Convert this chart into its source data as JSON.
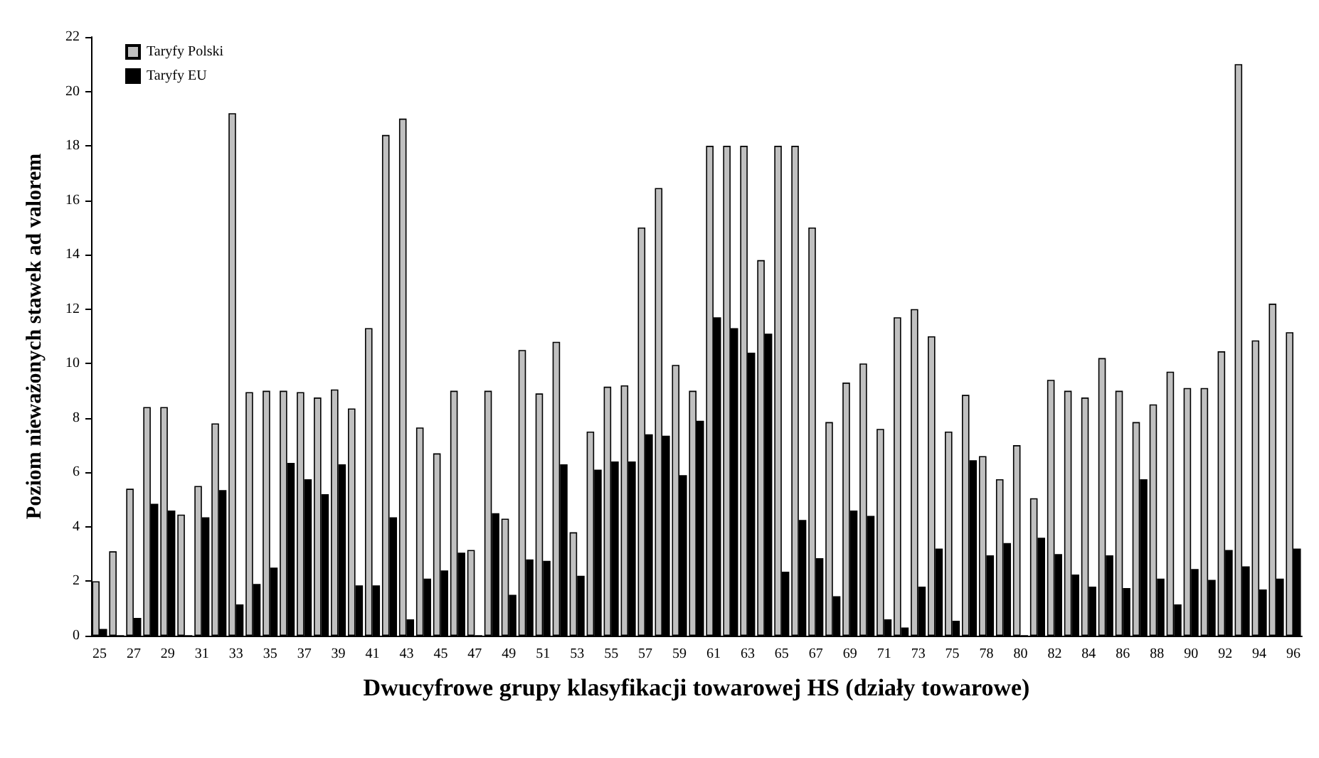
{
  "chart_data": {
    "type": "bar",
    "xlabel": "Dwucyfrowe grupy klasyfikacji towarowej HS (działy towarowe)",
    "ylabel": "Poziom nieważonych stawek ad valorem",
    "categories": [
      "25",
      null,
      "27",
      null,
      "29",
      null,
      "31",
      null,
      "33",
      null,
      "35",
      null,
      "37",
      null,
      "39",
      null,
      "41",
      null,
      "43",
      null,
      "45",
      null,
      "47",
      null,
      "49",
      null,
      "51",
      null,
      "53",
      null,
      "55",
      null,
      "57",
      null,
      "59",
      null,
      "61",
      null,
      "63",
      null,
      "65",
      null,
      "67",
      null,
      "69",
      null,
      "71",
      null,
      "73",
      null,
      "75",
      null,
      "78",
      null,
      "80",
      null,
      "82",
      null,
      "84",
      null,
      "86",
      null,
      "88",
      null,
      "90",
      null,
      "92",
      null,
      "94",
      null,
      "96"
    ],
    "series": [
      {
        "name": "Taryfy Polski",
        "color": "#c0c0c0",
        "values": [
          2.0,
          3.1,
          5.4,
          8.4,
          8.4,
          4.45,
          5.5,
          7.8,
          19.2,
          8.95,
          9.0,
          9.0,
          8.95,
          8.75,
          9.05,
          8.35,
          11.3,
          18.4,
          19.0,
          7.65,
          6.7,
          9.0,
          3.15,
          9.0,
          4.3,
          10.5,
          8.9,
          10.8,
          3.8,
          7.5,
          9.15,
          9.2,
          15.0,
          16.45,
          9.95,
          9.0,
          18.0,
          18.0,
          18.0,
          13.8,
          18.0,
          18.0,
          15.0,
          7.85,
          9.3,
          10.0,
          7.6,
          11.7,
          12.0,
          11.0,
          7.5,
          8.85,
          6.6,
          5.75,
          7.0,
          5.05,
          9.4,
          9.0,
          8.75,
          10.2,
          9.0,
          7.85,
          8.5,
          9.7,
          9.1,
          9.1,
          10.45,
          21.0,
          10.85,
          12.2,
          11.15
        ]
      },
      {
        "name": "Taryfy EU",
        "color": "#000000",
        "values": [
          0.25,
          0,
          0.65,
          4.85,
          4.6,
          0,
          4.35,
          5.35,
          1.15,
          1.9,
          2.5,
          6.35,
          5.75,
          5.2,
          6.3,
          1.85,
          1.85,
          4.35,
          0.6,
          2.1,
          2.4,
          3.05,
          0,
          4.5,
          1.5,
          2.8,
          2.75,
          6.3,
          2.2,
          6.1,
          6.4,
          6.4,
          7.4,
          7.35,
          5.9,
          7.9,
          11.7,
          11.3,
          10.4,
          11.1,
          2.35,
          4.25,
          2.85,
          1.45,
          4.6,
          4.4,
          0.6,
          0.3,
          1.8,
          3.2,
          0.55,
          6.45,
          2.95,
          3.4,
          0,
          3.6,
          3.0,
          2.25,
          1.8,
          2.95,
          1.75,
          5.75,
          2.1,
          1.15,
          2.45,
          2.05,
          3.15,
          2.55,
          1.7,
          2.1,
          3.2
        ]
      }
    ],
    "ylim": [
      0,
      22
    ],
    "yticks": [
      0,
      2,
      4,
      6,
      8,
      10,
      12,
      14,
      16,
      18,
      20,
      22
    ],
    "legend": "top left"
  }
}
